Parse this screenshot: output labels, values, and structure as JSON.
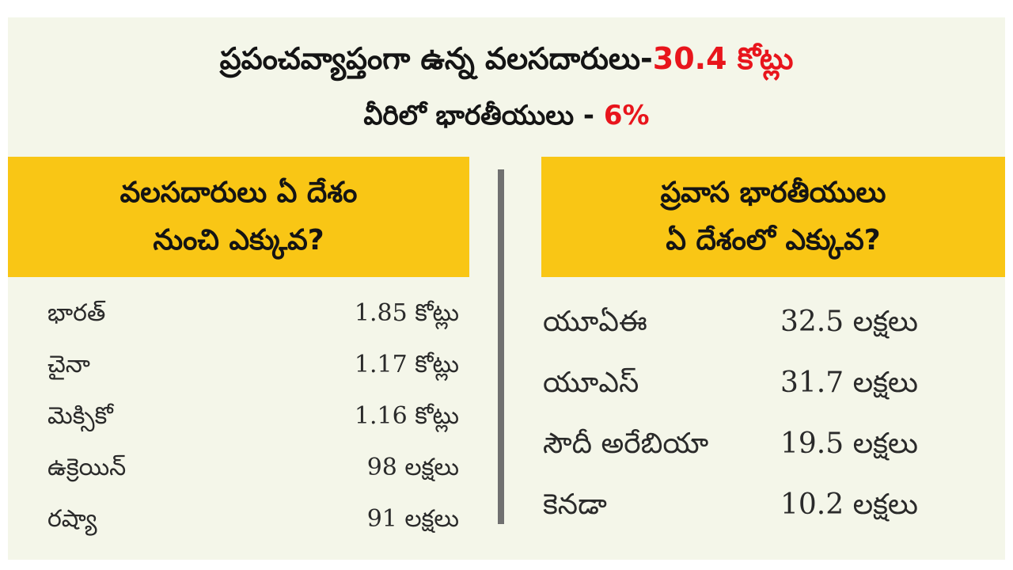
{
  "header": {
    "line1_text": "ప్రపంచవ్యాప్తంగా ఉన్న వలసదారులు-",
    "line1_value": "30.4 కోట్లు",
    "line2_text": "వీరిలో భారతీయులు  - ",
    "line2_value": "6%"
  },
  "left": {
    "title_line1": "వలసదారులు ఏ దేశం",
    "title_line2": "నుంచి ఎక్కువ?",
    "rows": [
      {
        "name": "భారత్",
        "value": "1.85 కోట్లు"
      },
      {
        "name": "చైనా",
        "value": "1.17 కోట్లు"
      },
      {
        "name": "మెక్సికో",
        "value": "1.16 కోట్లు"
      },
      {
        "name": "ఉక్రెయిన్",
        "value": "98 లక్షలు"
      },
      {
        "name": "రష్యా",
        "value": "91 లక్షలు"
      }
    ]
  },
  "right": {
    "title_line1": "ప్రవాస భారతీయులు",
    "title_line2": "ఏ దేశంలో ఎక్కువ?",
    "rows": [
      {
        "name": "యూఏఈ",
        "value": "32.5 లక్షలు"
      },
      {
        "name": "యూఎస్",
        "value": "31.7 లక్షలు"
      },
      {
        "name": "సౌదీ అరేబియా",
        "value": "19.5 లక్షలు"
      },
      {
        "name": "కెనడా",
        "value": "10.2 లక్షలు"
      }
    ]
  },
  "colors": {
    "background": "#f4f6e9",
    "accent_red": "#e8151c",
    "title_box_yellow": "#f9c615",
    "divider_gray": "#707070"
  }
}
